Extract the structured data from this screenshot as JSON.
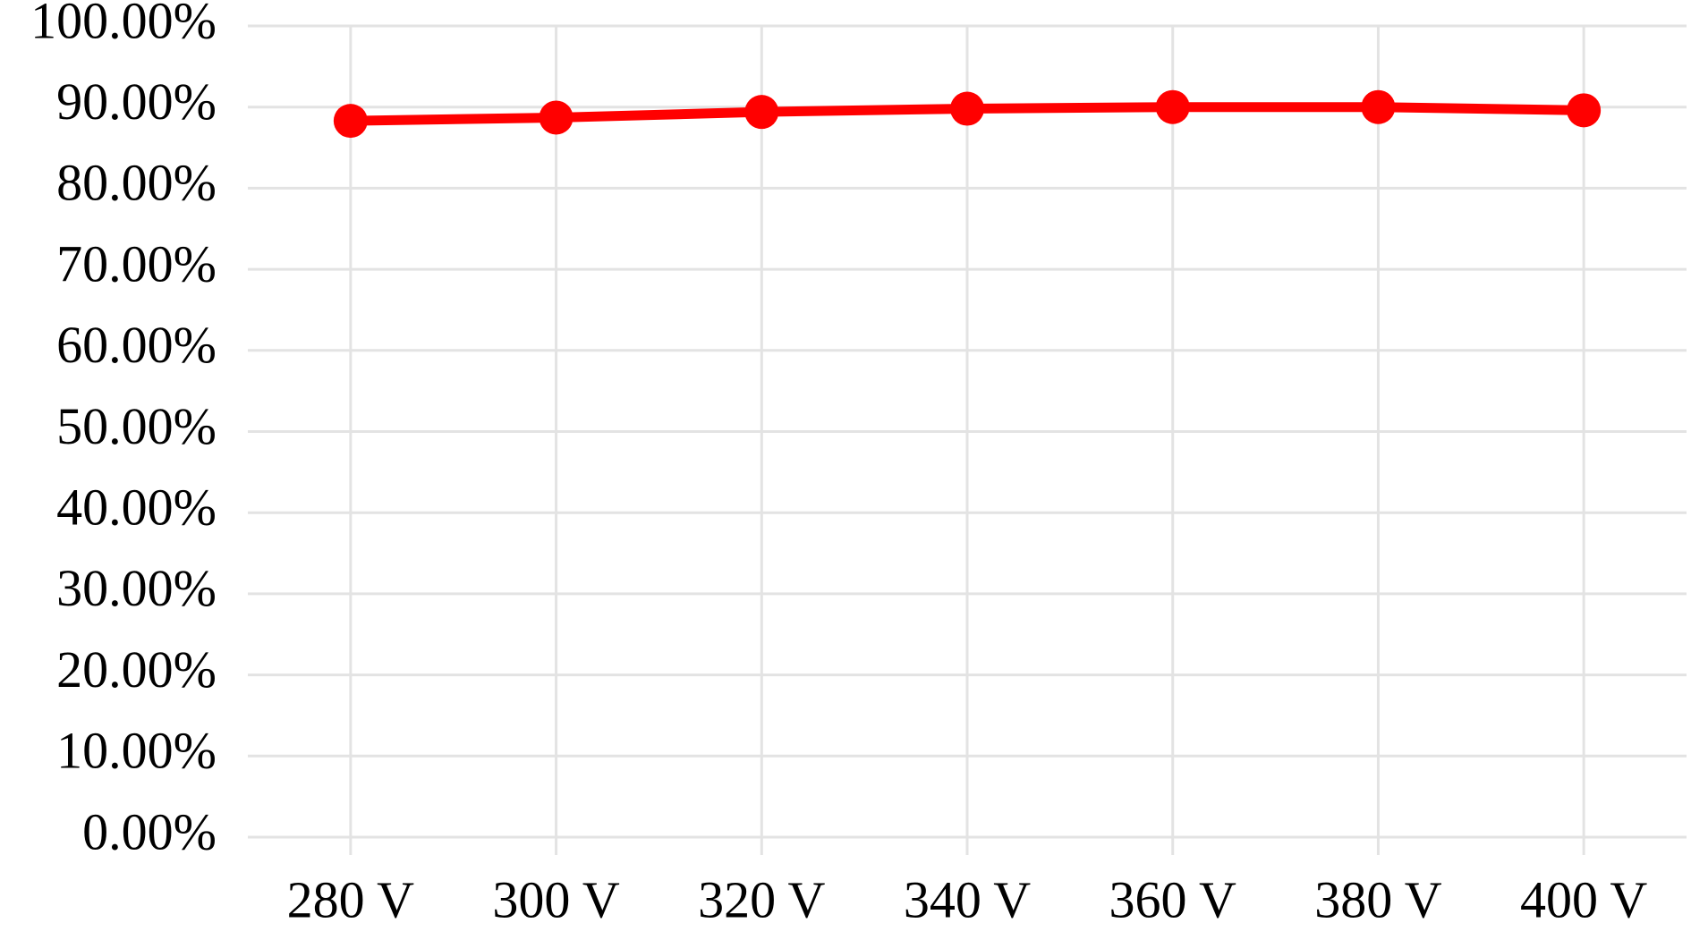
{
  "chart_data": {
    "type": "line",
    "categories": [
      "280 V",
      "300 V",
      "320 V",
      "340 V",
      "360 V",
      "380 V",
      "400 V"
    ],
    "values": [
      88.3,
      88.7,
      89.4,
      89.8,
      90.0,
      90.0,
      89.6
    ],
    "color": "#ff0000",
    "ylim": [
      0,
      100
    ],
    "yticks": [
      {
        "value": 0,
        "label": "0.00%"
      },
      {
        "value": 10,
        "label": "10.00%"
      },
      {
        "value": 20,
        "label": "20.00%"
      },
      {
        "value": 30,
        "label": "30.00%"
      },
      {
        "value": 40,
        "label": "40.00%"
      },
      {
        "value": 50,
        "label": "50.00%"
      },
      {
        "value": 60,
        "label": "60.00%"
      },
      {
        "value": 70,
        "label": "70.00%"
      },
      {
        "value": 80,
        "label": "80.00%"
      },
      {
        "value": 90,
        "label": "90.00%"
      },
      {
        "value": 100,
        "label": "100.00%"
      }
    ],
    "grid": true
  }
}
